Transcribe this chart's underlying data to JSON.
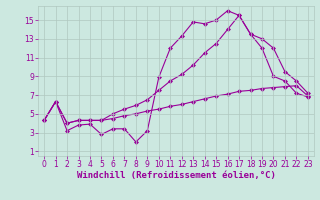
{
  "background_color": "#cce8e0",
  "line_color": "#990099",
  "grid_color": "#b0c8c0",
  "xlabel": "Windchill (Refroidissement éolien,°C)",
  "xlabel_color": "#990099",
  "ylabel_color": "#990099",
  "x_ticks": [
    0,
    1,
    2,
    3,
    4,
    5,
    6,
    7,
    8,
    9,
    10,
    11,
    12,
    13,
    14,
    15,
    16,
    17,
    18,
    19,
    20,
    21,
    22,
    23
  ],
  "y_ticks": [
    1,
    3,
    5,
    7,
    9,
    11,
    13,
    15
  ],
  "ylim": [
    0.5,
    16.5
  ],
  "xlim": [
    -0.5,
    23.5
  ],
  "line1_x": [
    0,
    1,
    2,
    3,
    4,
    5,
    6,
    7,
    8,
    9,
    10,
    11,
    12,
    13,
    14,
    15,
    16,
    17,
    18,
    19,
    20,
    21,
    22,
    23
  ],
  "line1_y": [
    4.3,
    6.3,
    3.2,
    3.8,
    3.9,
    2.8,
    3.4,
    3.4,
    2.0,
    3.2,
    8.9,
    12.0,
    13.3,
    14.8,
    14.6,
    15.0,
    16.0,
    15.5,
    13.5,
    12.0,
    9.0,
    8.5,
    7.2,
    6.8
  ],
  "line2_x": [
    0,
    1,
    2,
    3,
    4,
    5,
    6,
    7,
    8,
    9,
    10,
    11,
    12,
    13,
    14,
    15,
    16,
    17,
    18,
    19,
    20,
    21,
    22,
    23
  ],
  "line2_y": [
    4.3,
    6.3,
    4.0,
    4.3,
    4.3,
    4.3,
    4.5,
    4.8,
    5.0,
    5.3,
    5.5,
    5.8,
    6.0,
    6.3,
    6.6,
    6.9,
    7.1,
    7.4,
    7.5,
    7.7,
    7.8,
    7.9,
    8.0,
    6.9
  ],
  "line3_x": [
    0,
    1,
    2,
    3,
    4,
    5,
    6,
    7,
    8,
    9,
    10,
    11,
    12,
    13,
    14,
    15,
    16,
    17,
    18,
    19,
    20,
    21,
    22,
    23
  ],
  "line3_y": [
    4.3,
    6.3,
    4.0,
    4.3,
    4.3,
    4.3,
    5.0,
    5.5,
    5.9,
    6.5,
    7.5,
    8.5,
    9.2,
    10.2,
    11.5,
    12.5,
    14.0,
    15.5,
    13.5,
    13.0,
    12.0,
    9.5,
    8.5,
    7.2
  ],
  "marker": "D",
  "markersize": 2.0,
  "linewidth": 0.8,
  "tick_fontsize": 5.5,
  "xlabel_fontsize": 6.5
}
